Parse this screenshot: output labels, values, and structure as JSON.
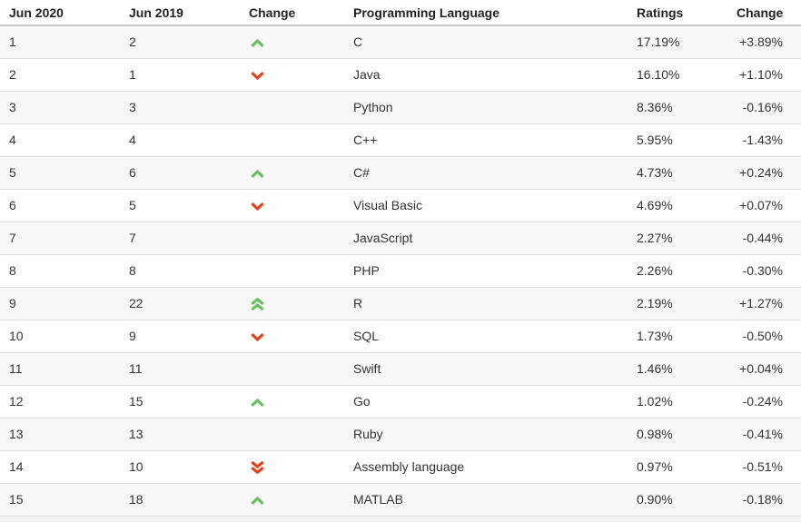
{
  "table": {
    "columns": [
      "Jun 2020",
      "Jun 2019",
      "Change",
      "Programming Language",
      "Ratings",
      "Change"
    ],
    "rows": [
      {
        "rank_2020": "1",
        "rank_2019": "2",
        "change": "up",
        "language": "C",
        "ratings": "17.19%",
        "change_pct": "+3.89%"
      },
      {
        "rank_2020": "2",
        "rank_2019": "1",
        "change": "down",
        "language": "Java",
        "ratings": "16.10%",
        "change_pct": "+1.10%"
      },
      {
        "rank_2020": "3",
        "rank_2019": "3",
        "change": "none",
        "language": "Python",
        "ratings": "8.36%",
        "change_pct": "-0.16%"
      },
      {
        "rank_2020": "4",
        "rank_2019": "4",
        "change": "none",
        "language": "C++",
        "ratings": "5.95%",
        "change_pct": "-1.43%"
      },
      {
        "rank_2020": "5",
        "rank_2019": "6",
        "change": "up",
        "language": "C#",
        "ratings": "4.73%",
        "change_pct": "+0.24%"
      },
      {
        "rank_2020": "6",
        "rank_2019": "5",
        "change": "down",
        "language": "Visual Basic",
        "ratings": "4.69%",
        "change_pct": "+0.07%"
      },
      {
        "rank_2020": "7",
        "rank_2019": "7",
        "change": "none",
        "language": "JavaScript",
        "ratings": "2.27%",
        "change_pct": "-0.44%"
      },
      {
        "rank_2020": "8",
        "rank_2019": "8",
        "change": "none",
        "language": "PHP",
        "ratings": "2.26%",
        "change_pct": "-0.30%"
      },
      {
        "rank_2020": "9",
        "rank_2019": "22",
        "change": "double-up",
        "language": "R",
        "ratings": "2.19%",
        "change_pct": "+1.27%"
      },
      {
        "rank_2020": "10",
        "rank_2019": "9",
        "change": "down",
        "language": "SQL",
        "ratings": "1.73%",
        "change_pct": "-0.50%"
      },
      {
        "rank_2020": "11",
        "rank_2019": "11",
        "change": "none",
        "language": "Swift",
        "ratings": "1.46%",
        "change_pct": "+0.04%"
      },
      {
        "rank_2020": "12",
        "rank_2019": "15",
        "change": "up",
        "language": "Go",
        "ratings": "1.02%",
        "change_pct": "-0.24%"
      },
      {
        "rank_2020": "13",
        "rank_2019": "13",
        "change": "none",
        "language": "Ruby",
        "ratings": "0.98%",
        "change_pct": "-0.41%"
      },
      {
        "rank_2020": "14",
        "rank_2019": "10",
        "change": "double-down",
        "language": "Assembly language",
        "ratings": "0.97%",
        "change_pct": "-0.51%"
      },
      {
        "rank_2020": "15",
        "rank_2019": "18",
        "change": "up",
        "language": "MATLAB",
        "ratings": "0.90%",
        "change_pct": "-0.18%"
      }
    ]
  },
  "colors": {
    "up_arrow": "#6ABF61",
    "down_arrow": "#E0431D",
    "stripe": "#f8f8f8",
    "row_border": "#dddddd"
  }
}
